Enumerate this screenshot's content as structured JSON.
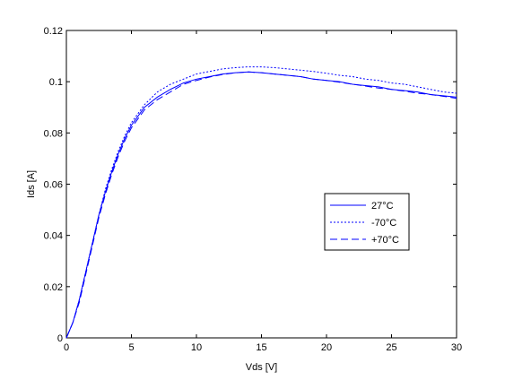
{
  "chart_data": {
    "type": "line",
    "title": "",
    "xlabel": "Vds [V]",
    "ylabel": "Ids [A]",
    "xlim": [
      0,
      30
    ],
    "ylim": [
      0,
      0.12
    ],
    "xticks": [
      0,
      5,
      10,
      15,
      20,
      25,
      30
    ],
    "xtick_labels": [
      "0",
      "5",
      "10",
      "15",
      "20",
      "25",
      "30"
    ],
    "yticks": [
      0,
      0.02,
      0.04,
      0.06,
      0.08,
      0.1,
      0.12
    ],
    "ytick_labels": [
      "0",
      "0.02",
      "0.04",
      "0.06",
      "0.08",
      "0.1",
      "0.12"
    ],
    "grid": false,
    "legend_position": "right",
    "series": [
      {
        "name": "27°C",
        "color": "#0000ff",
        "dash": "solid",
        "x": [
          0,
          0.5,
          1,
          1.5,
          2,
          2.5,
          3,
          3.5,
          4,
          4.5,
          5,
          6,
          7,
          8,
          9,
          10,
          11,
          12,
          13,
          14,
          15,
          16,
          17,
          18,
          19,
          20,
          21,
          22,
          23,
          24,
          25,
          26,
          27,
          28,
          29,
          30
        ],
        "y": [
          0,
          0.006,
          0.015,
          0.026,
          0.037,
          0.048,
          0.057,
          0.065,
          0.072,
          0.078,
          0.083,
          0.09,
          0.094,
          0.097,
          0.0995,
          0.101,
          0.102,
          0.103,
          0.1035,
          0.1038,
          0.1035,
          0.103,
          0.1025,
          0.102,
          0.101,
          0.1005,
          0.1,
          0.099,
          0.0985,
          0.098,
          0.097,
          0.0965,
          0.096,
          0.095,
          0.0945,
          0.094
        ]
      },
      {
        "name": "-70°C",
        "color": "#0000ff",
        "dash": "dotted",
        "x": [
          0,
          0.5,
          1,
          1.5,
          2,
          2.5,
          3,
          3.5,
          4,
          4.5,
          5,
          6,
          7,
          8,
          9,
          10,
          11,
          12,
          13,
          14,
          15,
          16,
          17,
          18,
          19,
          20,
          21,
          22,
          23,
          24,
          25,
          26,
          27,
          28,
          29,
          30
        ],
        "y": [
          0,
          0.006,
          0.015,
          0.026,
          0.037,
          0.048,
          0.058,
          0.066,
          0.073,
          0.079,
          0.084,
          0.091,
          0.096,
          0.099,
          0.101,
          0.103,
          0.104,
          0.105,
          0.1055,
          0.1058,
          0.1058,
          0.1055,
          0.105,
          0.1045,
          0.104,
          0.1033,
          0.1025,
          0.102,
          0.101,
          0.1005,
          0.0995,
          0.099,
          0.098,
          0.097,
          0.096,
          0.0955
        ]
      },
      {
        "name": "+70°C",
        "color": "#0000ff",
        "dash": "dashed",
        "x": [
          0,
          0.5,
          1,
          1.5,
          2,
          2.5,
          3,
          3.5,
          4,
          4.5,
          5,
          6,
          7,
          8,
          9,
          10,
          11,
          12,
          13,
          14,
          15,
          16,
          17,
          18,
          19,
          20,
          21,
          22,
          23,
          24,
          25,
          26,
          27,
          28,
          29,
          30
        ],
        "y": [
          0,
          0.006,
          0.014,
          0.025,
          0.036,
          0.047,
          0.056,
          0.064,
          0.071,
          0.077,
          0.082,
          0.089,
          0.093,
          0.096,
          0.099,
          0.1005,
          0.1018,
          0.1028,
          0.1035,
          0.1038,
          0.1035,
          0.103,
          0.1025,
          0.102,
          0.101,
          0.1005,
          0.0998,
          0.099,
          0.0983,
          0.0975,
          0.097,
          0.0963,
          0.0955,
          0.095,
          0.0943,
          0.0935
        ]
      }
    ]
  }
}
